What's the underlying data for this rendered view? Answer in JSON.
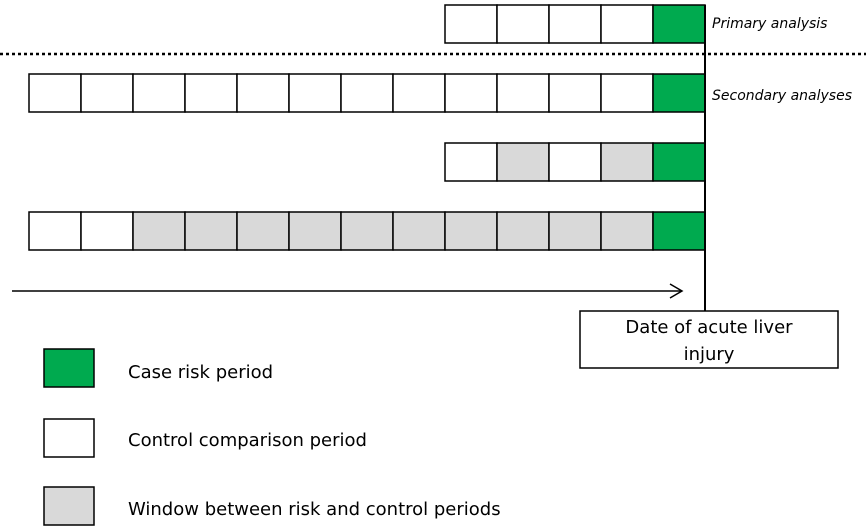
{
  "colors": {
    "risk": "#00aa4f",
    "control": "#ffffff",
    "window": "#d9d9d9",
    "stroke": "#000000"
  },
  "rows": [
    {
      "label": "Primary analysis",
      "cells": [
        "control",
        "control",
        "control",
        "control",
        "risk"
      ]
    },
    {
      "label": "Secondary analyses",
      "cells": [
        "control",
        "control",
        "control",
        "control",
        "control",
        "control",
        "control",
        "control",
        "control",
        "control",
        "control",
        "control",
        "risk"
      ]
    },
    {
      "label": "",
      "cells": [
        "control",
        "window",
        "control",
        "window",
        "risk"
      ]
    },
    {
      "label": "",
      "cells": [
        "control",
        "control",
        "window",
        "window",
        "window",
        "window",
        "window",
        "window",
        "window",
        "window",
        "window",
        "window",
        "risk"
      ]
    }
  ],
  "date_box": {
    "line1": "Date of acute liver",
    "line2": "injury"
  },
  "legend": [
    {
      "type": "risk",
      "label": "Case risk period"
    },
    {
      "type": "control",
      "label": "Control comparison period"
    },
    {
      "type": "window",
      "label": "Window between risk and control periods"
    }
  ]
}
